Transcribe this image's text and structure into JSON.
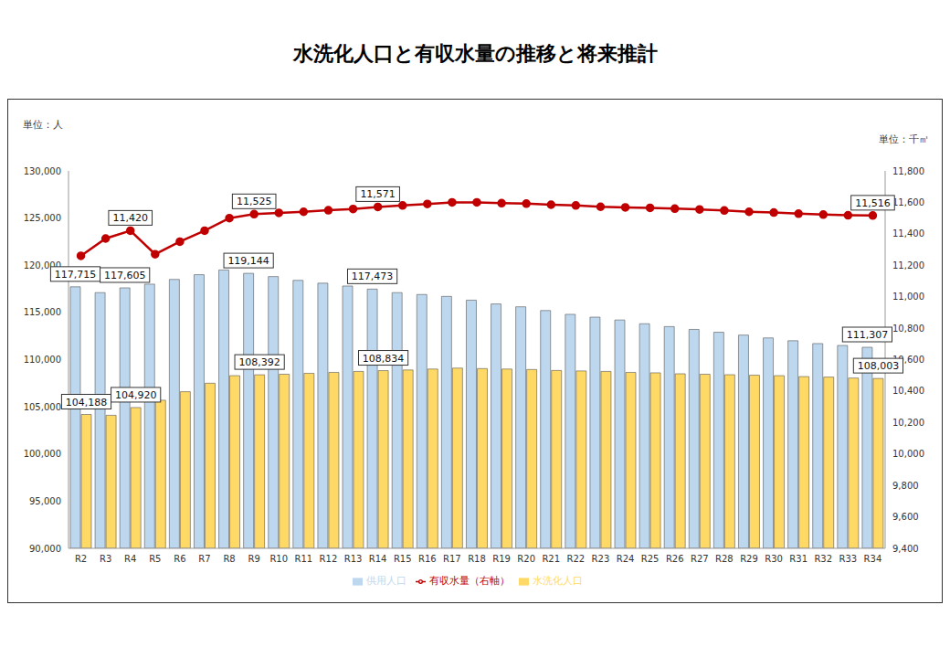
{
  "chart_data": {
    "type": "bar",
    "title": "水洗化人口と有収水量の推移と将来推計",
    "y_unit_label": "単位：人",
    "y2_unit_label": "単位：千㎥",
    "categories": [
      "R2",
      "R3",
      "R4",
      "R5",
      "R6",
      "R7",
      "R8",
      "R9",
      "R10",
      "R11",
      "R12",
      "R13",
      "R14",
      "R15",
      "R16",
      "R17",
      "R18",
      "R19",
      "R20",
      "R21",
      "R22",
      "R23",
      "R24",
      "R25",
      "R26",
      "R27",
      "R28",
      "R29",
      "R30",
      "R31",
      "R32",
      "R33",
      "R34"
    ],
    "series": [
      {
        "name": "供用人口",
        "type": "bar",
        "color": "#bdd7ee",
        "values": [
          117715,
          117100,
          117605,
          118000,
          118500,
          119000,
          119500,
          119144,
          118800,
          118400,
          118100,
          117800,
          117473,
          117100,
          116900,
          116700,
          116300,
          115900,
          115600,
          115200,
          114800,
          114500,
          114200,
          113800,
          113500,
          113200,
          112900,
          112600,
          112300,
          112000,
          111700,
          111500,
          111307
        ],
        "value_labels": [
          "117,715",
          null,
          "117,605",
          null,
          null,
          null,
          null,
          "119,144",
          null,
          null,
          null,
          null,
          "117,473",
          null,
          null,
          null,
          null,
          null,
          null,
          null,
          null,
          null,
          null,
          null,
          null,
          null,
          null,
          null,
          null,
          null,
          null,
          null,
          "111,307"
        ]
      },
      {
        "name": "水洗化人口",
        "type": "bar",
        "color": "#ffd966",
        "values": [
          104188,
          104100,
          104920,
          105700,
          106600,
          107500,
          108300,
          108392,
          108450,
          108550,
          108650,
          108750,
          108834,
          108900,
          109000,
          109100,
          109050,
          109000,
          108950,
          108850,
          108800,
          108750,
          108650,
          108600,
          108500,
          108450,
          108400,
          108350,
          108300,
          108200,
          108150,
          108050,
          108003
        ],
        "value_labels": [
          "104,188",
          null,
          "104,920",
          null,
          null,
          null,
          null,
          "108,392",
          null,
          null,
          null,
          null,
          "108,834",
          null,
          null,
          null,
          null,
          null,
          null,
          null,
          null,
          null,
          null,
          null,
          null,
          null,
          null,
          null,
          null,
          null,
          null,
          null,
          "108,003"
        ]
      },
      {
        "name": "有収水量（右軸）",
        "type": "line",
        "axis": "y2",
        "color": "#c00000",
        "marker": "circle",
        "values": [
          11260,
          11370,
          11420,
          11270,
          11350,
          11420,
          11500,
          11525,
          11533,
          11540,
          11550,
          11558,
          11571,
          11580,
          11590,
          11600,
          11600,
          11595,
          11592,
          11585,
          11580,
          11572,
          11568,
          11565,
          11560,
          11555,
          11548,
          11540,
          11535,
          11528,
          11522,
          11518,
          11516
        ],
        "value_labels": [
          null,
          null,
          "11,420",
          null,
          null,
          null,
          null,
          "11,525",
          null,
          null,
          null,
          null,
          "11,571",
          null,
          null,
          null,
          null,
          null,
          null,
          null,
          null,
          null,
          null,
          null,
          null,
          null,
          null,
          null,
          null,
          null,
          null,
          null,
          "11,516"
        ]
      }
    ],
    "ylim": [
      90000,
      130000
    ],
    "yticks": [
      {
        "value": 90000,
        "label": "90,000"
      },
      {
        "value": 95000,
        "label": "95,000"
      },
      {
        "value": 100000,
        "label": "100,000"
      },
      {
        "value": 105000,
        "label": "105,000"
      },
      {
        "value": 110000,
        "label": "110,000"
      },
      {
        "value": 115000,
        "label": "115,000"
      },
      {
        "value": 120000,
        "label": "120,000"
      },
      {
        "value": 125000,
        "label": "125,000"
      },
      {
        "value": 130000,
        "label": "130,000"
      }
    ],
    "y2lim": [
      9400,
      11800
    ],
    "y2ticks": [
      {
        "value": 9400,
        "label": "9,400"
      },
      {
        "value": 9600,
        "label": "9,600"
      },
      {
        "value": 9800,
        "label": "9,800"
      },
      {
        "value": 10000,
        "label": "10,000"
      },
      {
        "value": 10200,
        "label": "10,200"
      },
      {
        "value": 10400,
        "label": "10,400"
      },
      {
        "value": 10600,
        "label": "10,600"
      },
      {
        "value": 10800,
        "label": "10,800"
      },
      {
        "value": 11000,
        "label": "11,000"
      },
      {
        "value": 11200,
        "label": "11,200"
      },
      {
        "value": 11400,
        "label": "11,400"
      },
      {
        "value": 11600,
        "label": "11,600"
      },
      {
        "value": 11800,
        "label": "11,800"
      }
    ],
    "grid": false,
    "legend": "bottom",
    "data_labels": true
  }
}
